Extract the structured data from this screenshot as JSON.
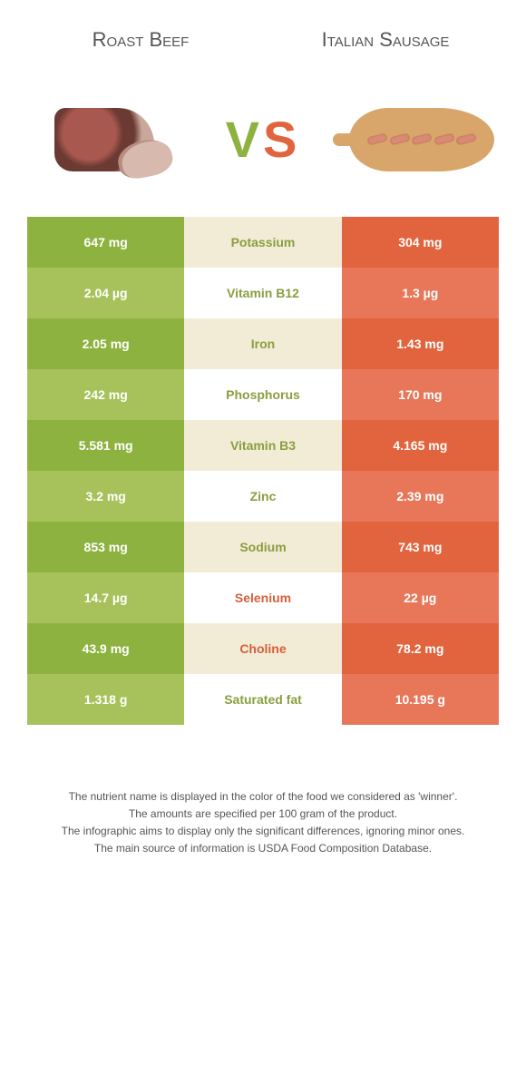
{
  "header": {
    "left_title": "Roast Beef",
    "right_title": "Italian Sausage",
    "vs_v": "V",
    "vs_s": "S"
  },
  "colors": {
    "green_dark": "#8eb23f",
    "green_light": "#a7c25b",
    "mid_cream": "#f2ecd6",
    "mid_white": "#ffffff",
    "orange_dark": "#e2643e",
    "orange_light": "#e8775a",
    "text_green": "#8a9e3f",
    "text_orange": "#d55f3c"
  },
  "rows": [
    {
      "label": "Potassium",
      "left": "647 mg",
      "right": "304 mg",
      "winner": "left"
    },
    {
      "label": "Vitamin B12",
      "left": "2.04 µg",
      "right": "1.3 µg",
      "winner": "left"
    },
    {
      "label": "Iron",
      "left": "2.05 mg",
      "right": "1.43 mg",
      "winner": "left"
    },
    {
      "label": "Phosphorus",
      "left": "242 mg",
      "right": "170 mg",
      "winner": "left"
    },
    {
      "label": "Vitamin B3",
      "left": "5.581 mg",
      "right": "4.165 mg",
      "winner": "left"
    },
    {
      "label": "Zinc",
      "left": "3.2 mg",
      "right": "2.39 mg",
      "winner": "left"
    },
    {
      "label": "Sodium",
      "left": "853 mg",
      "right": "743 mg",
      "winner": "left"
    },
    {
      "label": "Selenium",
      "left": "14.7 µg",
      "right": "22 µg",
      "winner": "right"
    },
    {
      "label": "Choline",
      "left": "43.9 mg",
      "right": "78.2 mg",
      "winner": "right"
    },
    {
      "label": "Saturated fat",
      "left": "1.318 g",
      "right": "10.195 g",
      "winner": "left"
    }
  ],
  "footnotes": [
    "The nutrient name is displayed in the color of the food we considered as 'winner'.",
    "The amounts are specified per 100 gram of the product.",
    "The infographic aims to display only the significant differences, ignoring minor ones.",
    "The main source of information is USDA Food Composition Database."
  ]
}
